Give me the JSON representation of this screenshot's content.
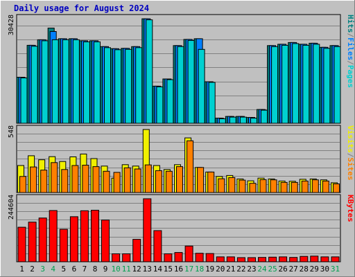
{
  "title": "Daily usage for August 2024",
  "colors": {
    "background": "#ffffff",
    "frame": "#c0c0c0",
    "title": "#0000c0",
    "pages": "#00d0d0",
    "files": "#0080ff",
    "hits": "#008080",
    "visits": "#f0f000",
    "sites": "#ff8000",
    "kbytes": "#ff0000",
    "weekend_label": "#00a050",
    "grid": "#808080"
  },
  "chart_data": {
    "type": "bar",
    "categories": [
      "1",
      "2",
      "3",
      "4",
      "5",
      "6",
      "7",
      "8",
      "9",
      "10",
      "11",
      "12",
      "13",
      "14",
      "15",
      "16",
      "17",
      "18",
      "19",
      "20",
      "21",
      "22",
      "23",
      "24",
      "25",
      "26",
      "27",
      "28",
      "29",
      "30",
      "31"
    ],
    "weekend_days": [
      "3",
      "4",
      "10",
      "11",
      "17",
      "18",
      "24",
      "25",
      "31"
    ],
    "panels": [
      {
        "name": "top",
        "max_label": "30428",
        "ylim": [
          0,
          30428
        ],
        "legend": [
          {
            "text": "Hits",
            "color_key": "hits"
          },
          {
            "text": "/",
            "color_key": "grid"
          },
          {
            "text": "Files",
            "color_key": "files"
          },
          {
            "text": "/",
            "color_key": "grid"
          },
          {
            "text": "Pages",
            "color_key": "pages"
          }
        ],
        "series": [
          {
            "name": "Hits",
            "color_key": "hits",
            "values": [
              13400,
              22700,
              24300,
              27700,
              24600,
              24600,
              24000,
              24000,
              22300,
              21700,
              21800,
              22300,
              30400,
              10800,
              12900,
              22600,
              24400,
              24600,
              12100,
              1500,
              2000,
              2000,
              1700,
              4000,
              22600,
              23000,
              23500,
              23000,
              23300,
              22100,
              22600
            ]
          },
          {
            "name": "Files",
            "color_key": "files",
            "values": [
              13400,
              22700,
              24300,
              26700,
              24600,
              24600,
              24000,
              24000,
              22300,
              21700,
              21800,
              22300,
              30400,
              10800,
              12900,
              22600,
              24400,
              24600,
              12100,
              1500,
              2000,
              2000,
              1700,
              4000,
              22600,
              23000,
              23500,
              23000,
              23300,
              22100,
              22600
            ]
          },
          {
            "name": "Pages",
            "color_key": "pages",
            "values": [
              13200,
              22400,
              24000,
              24300,
              24300,
              24300,
              23700,
              23700,
              22000,
              21400,
              21500,
              22000,
              30100,
              10600,
              12700,
              22300,
              24100,
              21500,
              11900,
              1300,
              1800,
              1800,
              1500,
              3800,
              22300,
              22700,
              23200,
              22700,
              23000,
              21800,
              22300
            ]
          }
        ]
      },
      {
        "name": "middle",
        "max_label": "548",
        "ylim": [
          0,
          548
        ],
        "legend": [
          {
            "text": "Visits",
            "color_key": "visits"
          },
          {
            "text": "/",
            "color_key": "grid"
          },
          {
            "text": "Sites",
            "color_key": "sites"
          }
        ],
        "series": [
          {
            "name": "Visits",
            "color_key": "visits",
            "values": [
              235,
              320,
              285,
              312,
              270,
              310,
              335,
              295,
              230,
              125,
              242,
              230,
              548,
              235,
              200,
              242,
              475,
              218,
              178,
              140,
              148,
              118,
              102,
              125,
              118,
              100,
              98,
              115,
              118,
              110,
              85
            ]
          },
          {
            "name": "Sites",
            "color_key": "sites",
            "values": [
              140,
              222,
              195,
              260,
              200,
              235,
              238,
              225,
              185,
              175,
              215,
              205,
              240,
              190,
              185,
              225,
              450,
              218,
              178,
              120,
              130,
              108,
              80,
              112,
              110,
              88,
              88,
              100,
              110,
              100,
              75
            ]
          }
        ]
      },
      {
        "name": "bottom",
        "max_label": "244604",
        "ylim": [
          0,
          244604
        ],
        "legend": [
          {
            "text": "KBytes",
            "color_key": "kbytes"
          }
        ],
        "series": [
          {
            "name": "KBytes",
            "color_key": "kbytes",
            "values": [
              134000,
              154000,
              170000,
              199000,
              126000,
              175000,
              198000,
              200000,
              162000,
              31000,
              31000,
              87000,
              244604,
              121000,
              31000,
              36000,
              61000,
              33000,
              32000,
              19000,
              19000,
              16000,
              16000,
              17000,
              18000,
              19000,
              17000,
              21000,
              22000,
              19000,
              19000
            ]
          }
        ]
      }
    ]
  }
}
